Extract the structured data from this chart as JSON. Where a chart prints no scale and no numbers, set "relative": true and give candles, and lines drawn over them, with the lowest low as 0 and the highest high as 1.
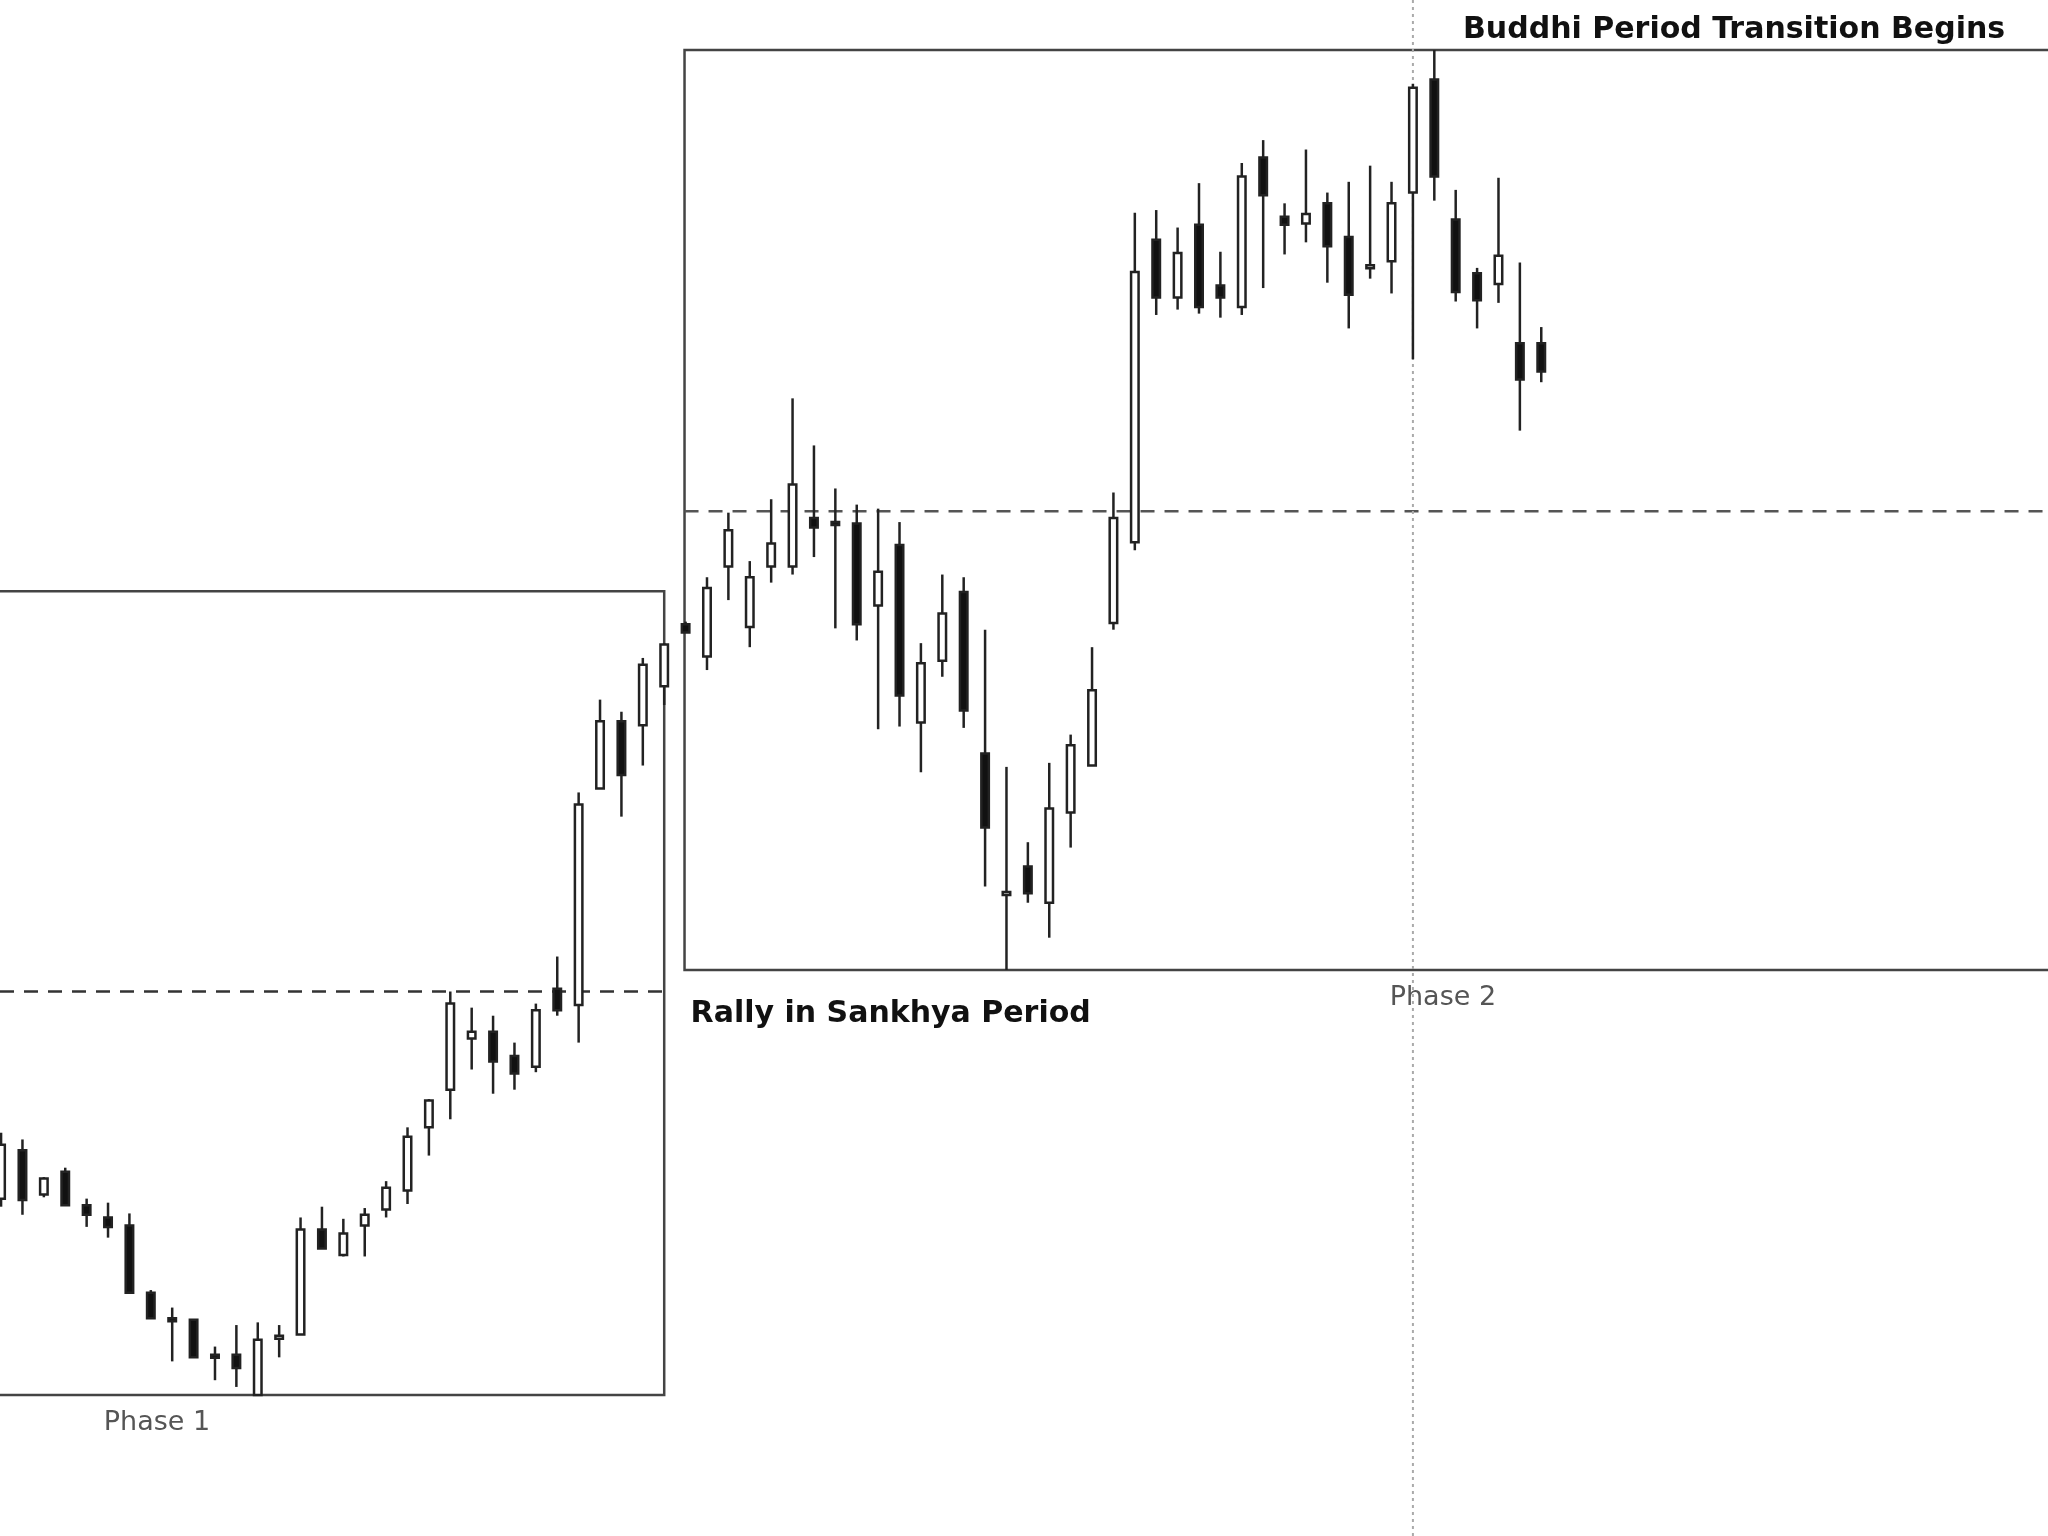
{
  "chart_data": {
    "type": "candlestick",
    "relative": true,
    "categories": [
      null,
      null,
      null,
      null,
      null,
      null,
      null,
      null,
      null,
      null,
      null,
      null,
      null,
      null,
      null,
      null,
      null,
      null,
      null,
      null,
      null,
      null,
      null,
      null,
      null,
      null,
      null,
      null,
      null,
      null,
      null,
      null,
      null,
      null,
      null,
      null,
      null,
      null,
      null,
      null,
      null,
      null,
      null,
      null,
      null,
      null,
      null,
      null,
      null,
      null,
      null,
      null,
      null,
      null,
      null,
      null,
      null,
      null,
      null,
      null,
      null,
      null,
      null,
      null,
      null,
      null,
      null,
      null,
      null,
      null,
      null,
      null,
      null
    ],
    "ohlc": [
      [
        0.146,
        0.195,
        0.14,
        0.186
      ],
      [
        0.182,
        0.19,
        0.134,
        0.145
      ],
      [
        0.149,
        0.162,
        0.147,
        0.161
      ],
      [
        0.166,
        0.169,
        0.141,
        0.141
      ],
      [
        0.141,
        0.146,
        0.125,
        0.134
      ],
      [
        0.132,
        0.143,
        0.117,
        0.125
      ],
      [
        0.126,
        0.135,
        0.076,
        0.076
      ],
      [
        0.076,
        0.078,
        0.057,
        0.057
      ],
      [
        0.057,
        0.065,
        0.025,
        0.056
      ],
      [
        0.056,
        0.056,
        0.028,
        0.028
      ],
      [
        0.03,
        0.036,
        0.011,
        0.028
      ],
      [
        0.03,
        0.052,
        0.006,
        0.02
      ],
      [
        0,
        0.054,
        0,
        0.041
      ],
      [
        0.043,
        0.052,
        0.028,
        0.044
      ],
      [
        0.045,
        0.132,
        0.045,
        0.123
      ],
      [
        0.123,
        0.14,
        0.109,
        0.109
      ],
      [
        0.104,
        0.131,
        0.103,
        0.12
      ],
      [
        0.126,
        0.139,
        0.103,
        0.134
      ],
      [
        0.138,
        0.159,
        0.132,
        0.154
      ],
      [
        0.152,
        0.199,
        0.142,
        0.192
      ],
      [
        0.199,
        0.22,
        0.178,
        0.219
      ],
      [
        0.227,
        0.3,
        0.205,
        0.291
      ],
      [
        0.265,
        0.288,
        0.242,
        0.27
      ],
      [
        0.27,
        0.282,
        0.224,
        0.248
      ],
      [
        0.252,
        0.262,
        0.227,
        0.239
      ],
      [
        0.244,
        0.291,
        0.24,
        0.286
      ],
      [
        0.302,
        0.326,
        0.282,
        0.286
      ],
      [
        0.29,
        0.448,
        0.262,
        0.439
      ],
      [
        0.451,
        0.517,
        0.451,
        0.501
      ],
      [
        0.501,
        0.508,
        0.43,
        0.461
      ],
      [
        0.498,
        0.548,
        0.468,
        0.543
      ],
      [
        0.527,
        0.559,
        0.513,
        0.558
      ],
      [
        0.573,
        0.575,
        0.567,
        0.567
      ],
      [
        0.549,
        0.608,
        0.539,
        0.6
      ],
      [
        0.616,
        0.656,
        0.591,
        0.643
      ],
      [
        0.571,
        0.62,
        0.556,
        0.608
      ],
      [
        0.616,
        0.666,
        0.604,
        0.633
      ],
      [
        0.616,
        0.741,
        0.61,
        0.677
      ],
      [
        0.652,
        0.706,
        0.623,
        0.645
      ],
      [
        0.649,
        0.674,
        0.57,
        0.648
      ],
      [
        0.648,
        0.662,
        0.561,
        0.573
      ],
      [
        0.587,
        0.659,
        0.495,
        0.612
      ],
      [
        0.632,
        0.649,
        0.497,
        0.52
      ],
      [
        0.5,
        0.559,
        0.463,
        0.544
      ],
      [
        0.546,
        0.61,
        0.534,
        0.581
      ],
      [
        0.597,
        0.608,
        0.496,
        0.509
      ],
      [
        0.477,
        0.569,
        0.378,
        0.422
      ],
      [
        0.373,
        0.467,
        0.316,
        0.374
      ],
      [
        0.393,
        0.411,
        0.366,
        0.373
      ],
      [
        0.366,
        0.47,
        0.34,
        0.436
      ],
      [
        0.433,
        0.491,
        0.407,
        0.483
      ],
      [
        0.468,
        0.556,
        0.468,
        0.524
      ],
      [
        0.574,
        0.671,
        0.569,
        0.652
      ],
      [
        0.634,
        0.879,
        0.628,
        0.835
      ],
      [
        0.859,
        0.881,
        0.803,
        0.816
      ],
      [
        0.816,
        0.868,
        0.807,
        0.849
      ],
      [
        0.87,
        0.901,
        0.804,
        0.809
      ],
      [
        0.825,
        0.85,
        0.801,
        0.816
      ],
      [
        0.809,
        0.916,
        0.803,
        0.906
      ],
      [
        0.92,
        0.933,
        0.823,
        0.892
      ],
      [
        0.876,
        0.886,
        0.848,
        0.87
      ],
      [
        0.871,
        0.926,
        0.857,
        0.878
      ],
      [
        0.886,
        0.894,
        0.827,
        0.854
      ],
      [
        0.861,
        0.902,
        0.793,
        0.818
      ],
      [
        0.839,
        0.914,
        0.83,
        0.84
      ],
      [
        0.843,
        0.902,
        0.819,
        0.886
      ],
      [
        0.894,
        0.975,
        0.77,
        0.972
      ],
      [
        0.978,
        1,
        0.888,
        0.906
      ],
      [
        0.874,
        0.896,
        0.813,
        0.82
      ],
      [
        0.834,
        0.838,
        0.793,
        0.814
      ],
      [
        0.826,
        0.905,
        0.812,
        0.847
      ],
      [
        0.782,
        0.842,
        0.717,
        0.755
      ],
      [
        0.782,
        0.794,
        0.753,
        0.761
      ]
    ],
    "ref_lines": [
      {
        "axis": "y",
        "value": 0.3,
        "color": "#333333",
        "line_style": "dashed"
      },
      {
        "axis": "y",
        "value": 0.657,
        "color": "#555555",
        "line_style": "dashed"
      }
    ],
    "annotations": [
      "Phase 1",
      "Rally in Sankhya Period",
      "Phase 2",
      "Buddhi Period Transition Begins"
    ]
  }
}
